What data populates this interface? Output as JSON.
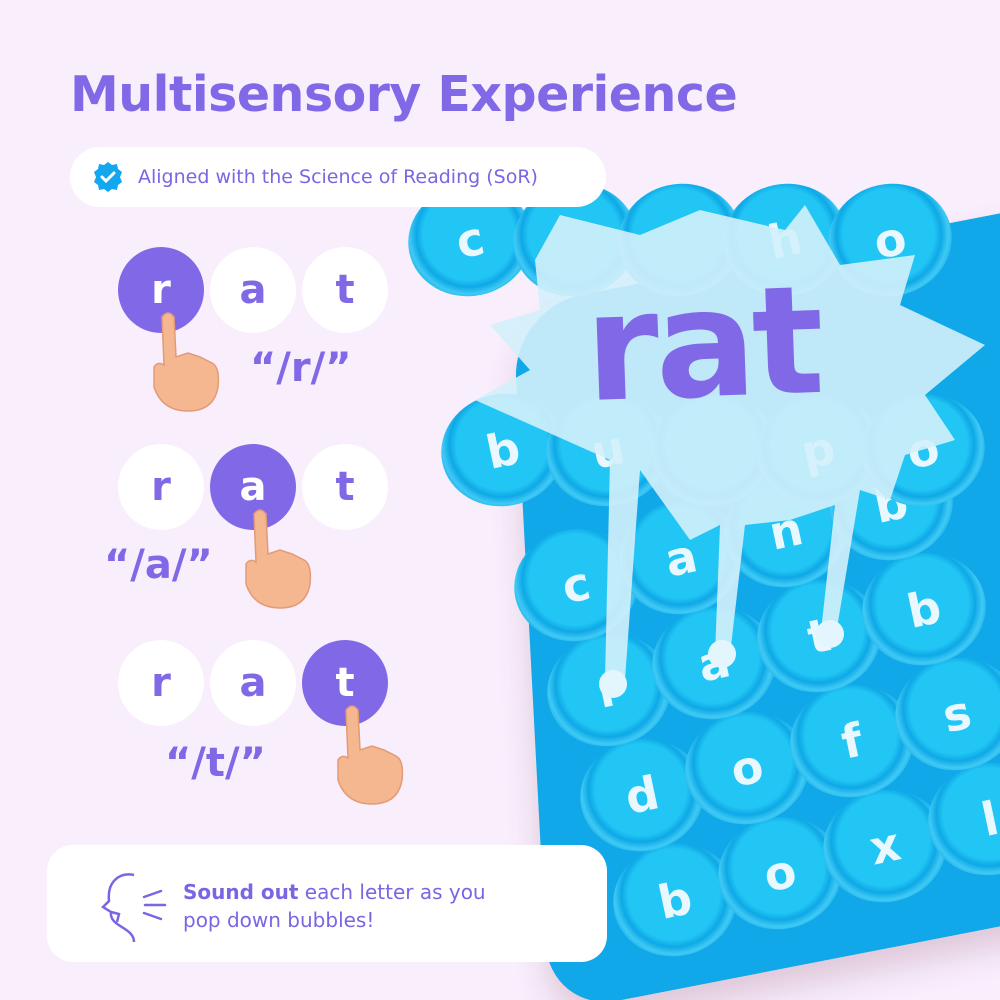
{
  "title": "Multisensory Experience",
  "badge": {
    "icon": "verified-check-badge-icon",
    "text": "Aligned with the Science of Reading (SoR)"
  },
  "steps": [
    {
      "letters": [
        "r",
        "a",
        "t"
      ],
      "active": 0,
      "sound": "“/r/”"
    },
    {
      "letters": [
        "r",
        "a",
        "t"
      ],
      "active": 1,
      "sound": "“/a/”"
    },
    {
      "letters": [
        "r",
        "a",
        "t"
      ],
      "active": 2,
      "sound": "“/t/”"
    }
  ],
  "popit": {
    "word": "rat",
    "rows": [
      [
        "b",
        "o",
        "x",
        "l"
      ],
      [
        "d",
        "o",
        "f",
        "s"
      ],
      [
        "r",
        "a",
        "t",
        "b"
      ],
      [
        "c",
        "a",
        "n",
        "b"
      ],
      [
        "b",
        "u",
        "",
        "p",
        "o"
      ],
      [
        "c",
        "",
        "",
        "h",
        "o"
      ]
    ]
  },
  "card": {
    "icon": "speaking-head-icon",
    "bold": "Sound out",
    "rest": " each letter as you",
    "line2": "pop down bubbles!"
  },
  "colors": {
    "accent": "#8068e6",
    "popit": "#16b4ee",
    "background": "#f8eefc",
    "hand": "#f4b78f"
  }
}
